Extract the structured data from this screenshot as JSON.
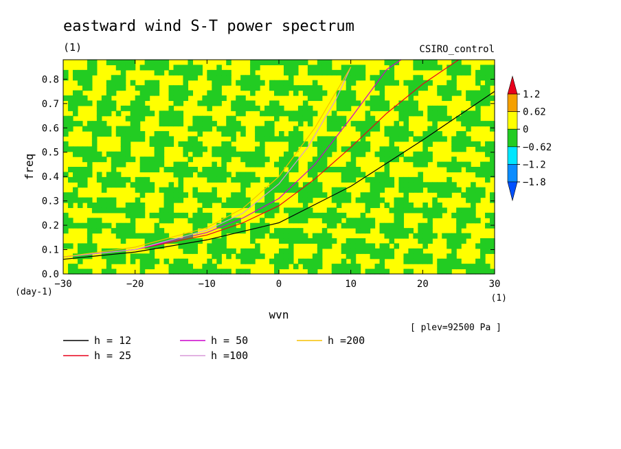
{
  "chart_data": {
    "type": "heatmap",
    "title": "eastward wind S-T power spectrum",
    "subtitle": "(1)",
    "run_label": "CSIRO_control",
    "xlabel": "wvn",
    "xunit": "(1)",
    "ylabel": "freq",
    "yunit": "(day-1)",
    "xlim": [
      -30,
      30
    ],
    "ylim": [
      0,
      0.88
    ],
    "xticks": [
      -30,
      -20,
      -10,
      0,
      10,
      20,
      30
    ],
    "yticks": [
      0.0,
      0.1,
      0.2,
      0.3,
      0.4,
      0.5,
      0.6,
      0.7,
      0.8
    ],
    "plev_label": "[ plev=92500 Pa ]",
    "colorbar": {
      "levels": [
        "1.2",
        "0.62",
        "0",
        "-0.62",
        "-1.2",
        "-1.8"
      ],
      "colors": [
        "#e8001c",
        "#f5a000",
        "#ffff00",
        "#22cc22",
        "#00e6ff",
        "#0a8cff",
        "#0050ff"
      ]
    },
    "field_colors": {
      "positive": "#ffff00",
      "negative": "#22cc22"
    },
    "series": [
      {
        "name": "h = 12",
        "color": "#000000",
        "x": [
          -30,
          -20,
          -10,
          0,
          10,
          20,
          30
        ],
        "y": [
          0.06,
          0.09,
          0.14,
          0.21,
          0.36,
          0.55,
          0.75
        ]
      },
      {
        "name": "h = 25",
        "color": "#e8001c",
        "x": [
          -30,
          -20,
          -10,
          -5,
          0,
          5,
          10,
          15,
          20,
          25
        ],
        "y": [
          0.07,
          0.1,
          0.16,
          0.21,
          0.28,
          0.39,
          0.52,
          0.66,
          0.78,
          0.88
        ]
      },
      {
        "name": "h = 50",
        "color": "#cc00cc",
        "x": [
          -30,
          -20,
          -10,
          -5,
          0,
          5,
          10,
          15,
          17
        ],
        "y": [
          0.07,
          0.1,
          0.17,
          0.23,
          0.31,
          0.45,
          0.64,
          0.84,
          0.88
        ]
      },
      {
        "name": "h =100",
        "color": "#d898d8",
        "x": [
          -30,
          -20,
          -10,
          -5,
          0,
          4,
          8,
          10
        ],
        "y": [
          0.07,
          0.1,
          0.18,
          0.25,
          0.37,
          0.52,
          0.72,
          0.85
        ]
      },
      {
        "name": "h =200",
        "color": "#f5c000",
        "x": [
          -30,
          -20,
          -10,
          -5,
          0,
          5,
          10
        ],
        "y": [
          0.07,
          0.11,
          0.19,
          0.27,
          0.4,
          0.6,
          0.85
        ]
      }
    ]
  }
}
